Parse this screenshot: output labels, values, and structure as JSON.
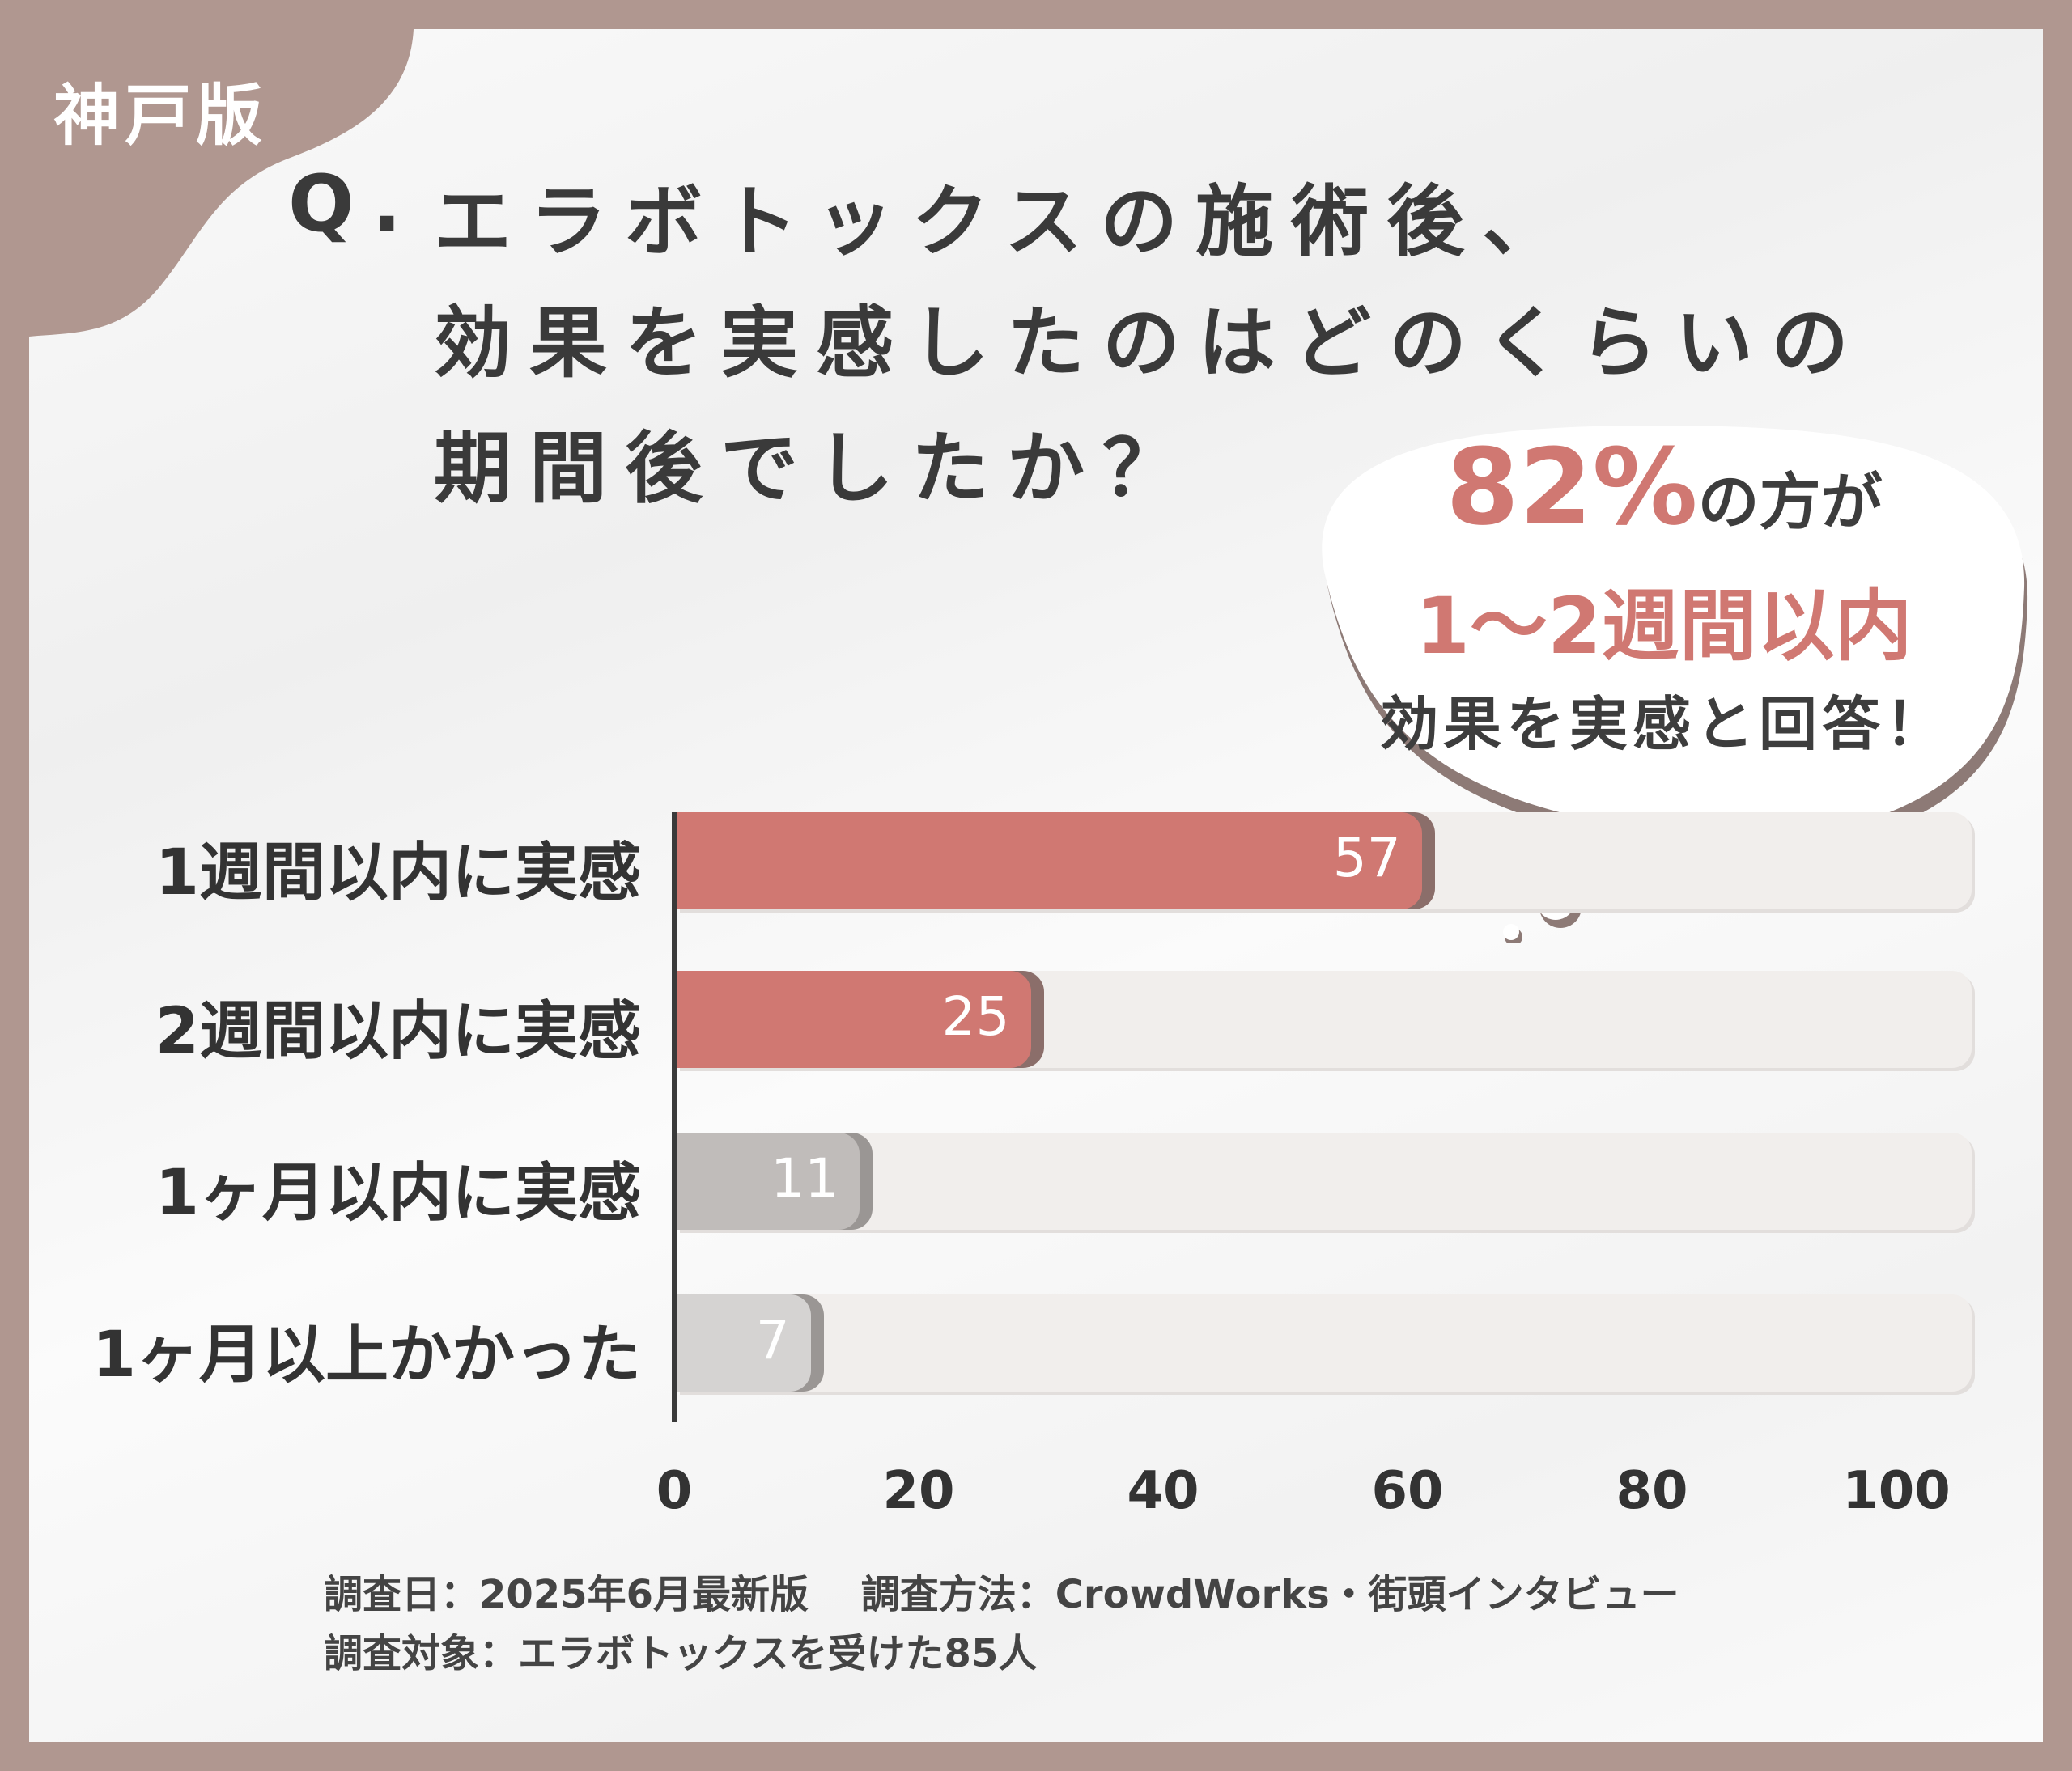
{
  "tag": "神戸版",
  "title": {
    "q": "Q.",
    "lines": [
      "エラボトックスの施術後、",
      "効果を実感したのはどのくらいの",
      "期間後でしたか？"
    ]
  },
  "callout": {
    "percent": "82%",
    "line1_rest": "の方が",
    "line2": "1〜2週間以内",
    "line3": "効果を実感と回答！"
  },
  "colors": {
    "highlight": "#d07872",
    "muted": "#c0bcba",
    "frame": "#b09790"
  },
  "chart_data": {
    "type": "bar",
    "orientation": "horizontal",
    "categories": [
      "1週間以内に実感",
      "2週間以内に実感",
      "1ヶ月以内に実感",
      "1ヶ月以上かかった"
    ],
    "values": [
      57,
      25,
      11,
      7
    ],
    "xlim": [
      0,
      100
    ],
    "xticks": [
      "0",
      "20",
      "40",
      "60",
      "80",
      "100"
    ],
    "bar_colors": [
      "#d07872",
      "#d07872",
      "#c0bcba",
      "#d5d3d2"
    ]
  },
  "footer": {
    "line1": "調査日：2025年6月最新版　 調査方法：CrowdWorks・街頭インタビュー",
    "line2": "調査対象：エラボトックスを受けた85人"
  }
}
